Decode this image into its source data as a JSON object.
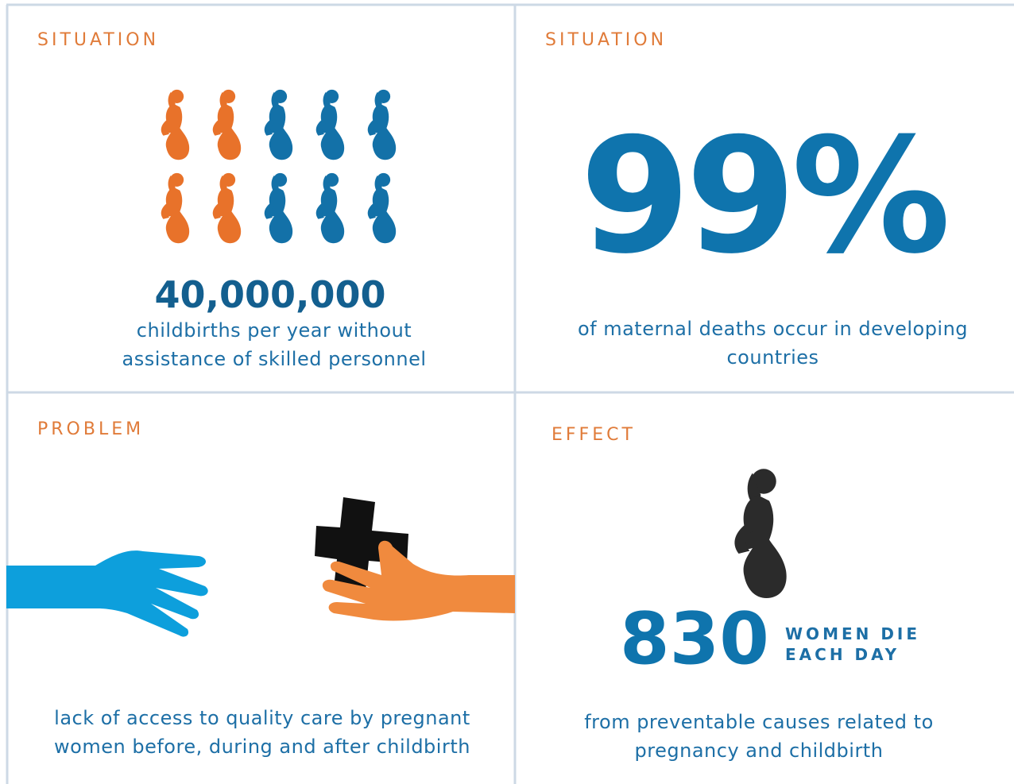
{
  "panels": [
    {
      "label": "SITUATION",
      "figure": "40,000,000",
      "text": "childbirths per year without assistance of skilled personnel"
    },
    {
      "label": "SITUATION",
      "figure": "99%",
      "text": "of maternal deaths occur in developing countries"
    },
    {
      "label": "PROBLEM",
      "text": "lack of access to quality care by pregnant women before, during and after childbirth"
    },
    {
      "label": "EFFECT",
      "figure": "830",
      "caption": "WOMEN DIE EACH DAY",
      "text": "from preventable causes related to pregnancy and childbirth"
    }
  ]
}
